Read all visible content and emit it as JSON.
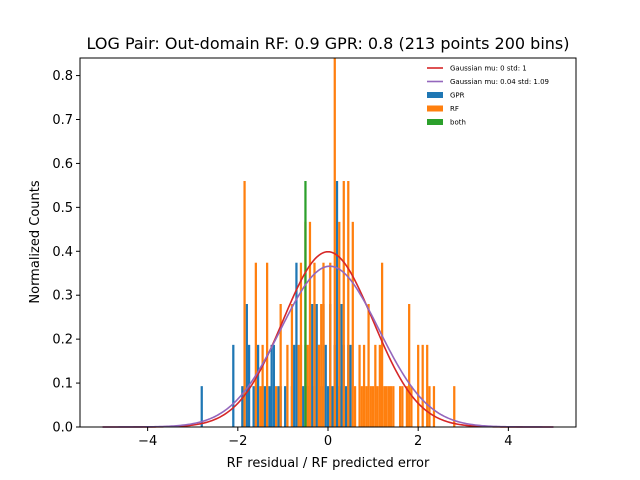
{
  "chart_data": {
    "type": "bar",
    "title": "LOG Pair: Out-domain RF: 0.9 GPR: 0.8 (213 points 200 bins)",
    "xlabel": "RF residual / RF predicted error",
    "ylabel": "Normalized Counts",
    "xlim": [
      -5.5,
      5.5
    ],
    "ylim": [
      0,
      0.84
    ],
    "xticks": [
      -4,
      -2,
      0,
      2,
      4
    ],
    "yticks": [
      0.0,
      0.1,
      0.2,
      0.3,
      0.4,
      0.5,
      0.6,
      0.7,
      0.8
    ],
    "xtick_labels": [
      "−4",
      "−2",
      "0",
      "2",
      "4"
    ],
    "ytick_labels": [
      "0.0",
      "0.1",
      "0.2",
      "0.3",
      "0.4",
      "0.5",
      "0.6",
      "0.7",
      "0.8"
    ],
    "bin_width": 0.05,
    "legend_position": "top-right",
    "grid": false,
    "histograms": [
      {
        "name": "GPR",
        "color": "#1f77b4",
        "bars": [
          {
            "x": -2.8,
            "y": 0.093
          },
          {
            "x": -2.1,
            "y": 0.187
          },
          {
            "x": -1.9,
            "y": 0.093
          },
          {
            "x": -1.8,
            "y": 0.28
          },
          {
            "x": -1.75,
            "y": 0.187
          },
          {
            "x": -1.65,
            "y": 0.093
          },
          {
            "x": -1.6,
            "y": 0.093
          },
          {
            "x": -1.55,
            "y": 0.187
          },
          {
            "x": -1.45,
            "y": 0.093
          },
          {
            "x": -1.4,
            "y": 0.093
          },
          {
            "x": -1.3,
            "y": 0.093
          },
          {
            "x": -1.25,
            "y": 0.187
          },
          {
            "x": -1.2,
            "y": 0.187
          },
          {
            "x": -1.1,
            "y": 0.093
          },
          {
            "x": -1.05,
            "y": 0.093
          },
          {
            "x": -0.95,
            "y": 0.093
          },
          {
            "x": -0.8,
            "y": 0.093
          },
          {
            "x": -0.75,
            "y": 0.187
          },
          {
            "x": -0.7,
            "y": 0.374
          },
          {
            "x": -0.6,
            "y": 0.187
          },
          {
            "x": -0.55,
            "y": 0.093
          },
          {
            "x": -0.5,
            "y": 0.187
          },
          {
            "x": -0.45,
            "y": 0.093
          },
          {
            "x": -0.4,
            "y": 0.187
          },
          {
            "x": -0.35,
            "y": 0.28
          },
          {
            "x": -0.3,
            "y": 0.093
          },
          {
            "x": -0.25,
            "y": 0.28
          },
          {
            "x": -0.2,
            "y": 0.187
          },
          {
            "x": -0.15,
            "y": 0.093
          },
          {
            "x": -0.1,
            "y": 0.28
          },
          {
            "x": -0.05,
            "y": 0.187
          },
          {
            "x": 0.0,
            "y": 0.093
          },
          {
            "x": 0.05,
            "y": 0.28
          },
          {
            "x": 0.1,
            "y": 0.093
          },
          {
            "x": 0.15,
            "y": 0.187
          },
          {
            "x": 0.2,
            "y": 0.56
          },
          {
            "x": 0.25,
            "y": 0.093
          },
          {
            "x": 0.3,
            "y": 0.28
          },
          {
            "x": 0.35,
            "y": 0.187
          },
          {
            "x": 0.4,
            "y": 0.093
          },
          {
            "x": 0.45,
            "y": 0.187
          },
          {
            "x": 0.5,
            "y": 0.187
          }
        ]
      },
      {
        "name": "RF",
        "color": "#ff7f0e",
        "bars": [
          {
            "x": -1.85,
            "y": 0.56
          },
          {
            "x": -1.6,
            "y": 0.374
          },
          {
            "x": -1.5,
            "y": 0.093
          },
          {
            "x": -1.45,
            "y": 0.187
          },
          {
            "x": -1.35,
            "y": 0.374
          },
          {
            "x": -1.15,
            "y": 0.093
          },
          {
            "x": -1.05,
            "y": 0.28
          },
          {
            "x": -0.9,
            "y": 0.187
          },
          {
            "x": -0.8,
            "y": 0.28
          },
          {
            "x": -0.65,
            "y": 0.187
          },
          {
            "x": -0.6,
            "y": 0.374
          },
          {
            "x": -0.5,
            "y": 0.467
          },
          {
            "x": -0.45,
            "y": 0.187
          },
          {
            "x": -0.4,
            "y": 0.467
          },
          {
            "x": -0.3,
            "y": 0.374
          },
          {
            "x": -0.2,
            "y": 0.187
          },
          {
            "x": -0.15,
            "y": 0.28
          },
          {
            "x": -0.1,
            "y": 0.374
          },
          {
            "x": 0.05,
            "y": 0.374
          },
          {
            "x": 0.15,
            "y": 0.84
          },
          {
            "x": 0.25,
            "y": 0.467
          },
          {
            "x": 0.35,
            "y": 0.56
          },
          {
            "x": 0.45,
            "y": 0.56
          },
          {
            "x": 0.55,
            "y": 0.467
          },
          {
            "x": 0.6,
            "y": 0.093
          },
          {
            "x": 0.7,
            "y": 0.187
          },
          {
            "x": 0.75,
            "y": 0.093
          },
          {
            "x": 0.8,
            "y": 0.187
          },
          {
            "x": 0.85,
            "y": 0.093
          },
          {
            "x": 0.9,
            "y": 0.28
          },
          {
            "x": 0.95,
            "y": 0.093
          },
          {
            "x": 1.0,
            "y": 0.093
          },
          {
            "x": 1.05,
            "y": 0.187
          },
          {
            "x": 1.1,
            "y": 0.093
          },
          {
            "x": 1.15,
            "y": 0.187
          },
          {
            "x": 1.2,
            "y": 0.374
          },
          {
            "x": 1.25,
            "y": 0.093
          },
          {
            "x": 1.3,
            "y": 0.093
          },
          {
            "x": 1.35,
            "y": 0.093
          },
          {
            "x": 1.4,
            "y": 0.093
          },
          {
            "x": 1.45,
            "y": 0.093
          },
          {
            "x": 1.6,
            "y": 0.093
          },
          {
            "x": 1.65,
            "y": 0.093
          },
          {
            "x": 1.75,
            "y": 0.093
          },
          {
            "x": 1.8,
            "y": 0.28
          },
          {
            "x": 1.85,
            "y": 0.093
          },
          {
            "x": 2.0,
            "y": 0.187
          },
          {
            "x": 2.1,
            "y": 0.187
          },
          {
            "x": 2.2,
            "y": 0.187
          },
          {
            "x": 2.25,
            "y": 0.093
          },
          {
            "x": 2.35,
            "y": 0.093
          },
          {
            "x": 2.8,
            "y": 0.093
          }
        ]
      },
      {
        "name": "both",
        "color": "#2ca02c",
        "bars": [
          {
            "x": -0.5,
            "y": 0.56
          }
        ]
      }
    ],
    "curves": [
      {
        "name": "Gaussian mu: 0 std: 1",
        "color": "#d62728",
        "mu": 0,
        "std": 1,
        "x_range": [
          -5,
          5
        ]
      },
      {
        "name": "Gaussian mu: 0.04 std: 1.09",
        "color": "#9467bd",
        "mu": 0.04,
        "std": 1.09,
        "x_range": [
          -5,
          5
        ]
      }
    ]
  }
}
